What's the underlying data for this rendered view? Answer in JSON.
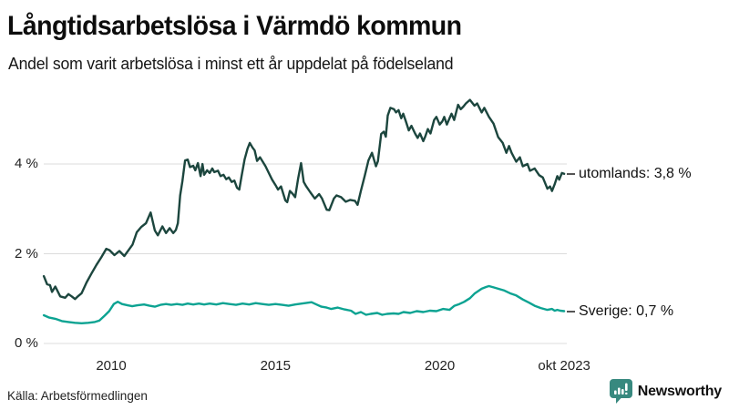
{
  "header": {
    "title": "Långtidsarbetslösa i Värmdö kommun",
    "subtitle": "Andel som varit arbetslösa i minst ett år uppdelat på födelseland"
  },
  "footer": {
    "source": "Källa: Arbetsförmedlingen",
    "brand": "Newsworthy"
  },
  "colors": {
    "utomlands_line": "#1c463e",
    "sverige_line": "#0ca392",
    "grid": "#dcdcdc",
    "text": "#111111",
    "axis_text": "#222222",
    "label_dash": "#555555",
    "brand_teal": "#38897f"
  },
  "chart_data": {
    "type": "line",
    "title": "Långtidsarbetslösa i Värmdö kommun",
    "subtitle": "Andel som varit arbetslösa i minst ett år uppdelat på födelseland",
    "unit": "%",
    "grid": "horizontal gridlines only",
    "legend_position": "inline labels at right end of lines",
    "x_axis": {
      "range": [
        2007.95,
        2023.79
      ],
      "ticks": [
        {
          "label": "2010",
          "year": 2010
        },
        {
          "label": "2015",
          "year": 2015
        },
        {
          "label": "2020",
          "year": 2020
        },
        {
          "label": "okt 2023",
          "year": 2023.79
        }
      ]
    },
    "y_axis": {
      "range": [
        0,
        5.6
      ],
      "ticks": [
        {
          "label": "0 %",
          "value": 0
        },
        {
          "label": "2 %",
          "value": 2
        },
        {
          "label": "4 %",
          "value": 4
        }
      ]
    },
    "series": [
      {
        "name": "utomlands",
        "label": "utomlands: 3,8 %",
        "current_value": "3,8 %",
        "color": "#1c463e",
        "points": [
          [
            2007.95,
            1.5
          ],
          [
            2008.05,
            1.32
          ],
          [
            2008.14,
            1.3
          ],
          [
            2008.2,
            1.15
          ],
          [
            2008.3,
            1.27
          ],
          [
            2008.45,
            1.05
          ],
          [
            2008.6,
            1.02
          ],
          [
            2008.7,
            1.1
          ],
          [
            2008.8,
            1.05
          ],
          [
            2008.9,
            0.99
          ],
          [
            2009.0,
            1.06
          ],
          [
            2009.1,
            1.12
          ],
          [
            2009.25,
            1.36
          ],
          [
            2009.4,
            1.56
          ],
          [
            2009.55,
            1.75
          ],
          [
            2009.7,
            1.92
          ],
          [
            2009.85,
            2.11
          ],
          [
            2009.95,
            2.08
          ],
          [
            2010.1,
            1.97
          ],
          [
            2010.25,
            2.06
          ],
          [
            2010.4,
            1.95
          ],
          [
            2010.55,
            2.1
          ],
          [
            2010.65,
            2.2
          ],
          [
            2010.78,
            2.48
          ],
          [
            2010.92,
            2.6
          ],
          [
            2011.06,
            2.68
          ],
          [
            2011.2,
            2.92
          ],
          [
            2011.33,
            2.52
          ],
          [
            2011.42,
            2.41
          ],
          [
            2011.56,
            2.61
          ],
          [
            2011.67,
            2.46
          ],
          [
            2011.78,
            2.57
          ],
          [
            2011.89,
            2.46
          ],
          [
            2011.97,
            2.53
          ],
          [
            2012.03,
            2.68
          ],
          [
            2012.1,
            3.3
          ],
          [
            2012.17,
            3.62
          ],
          [
            2012.25,
            4.08
          ],
          [
            2012.33,
            4.1
          ],
          [
            2012.4,
            3.93
          ],
          [
            2012.5,
            3.96
          ],
          [
            2012.56,
            3.86
          ],
          [
            2012.64,
            4.02
          ],
          [
            2012.72,
            3.73
          ],
          [
            2012.78,
            4.0
          ],
          [
            2012.83,
            3.76
          ],
          [
            2012.92,
            3.86
          ],
          [
            2013.0,
            3.8
          ],
          [
            2013.08,
            3.9
          ],
          [
            2013.14,
            3.82
          ],
          [
            2013.25,
            3.85
          ],
          [
            2013.33,
            3.73
          ],
          [
            2013.42,
            3.76
          ],
          [
            2013.5,
            3.66
          ],
          [
            2013.58,
            3.7
          ],
          [
            2013.67,
            3.6
          ],
          [
            2013.75,
            3.63
          ],
          [
            2013.83,
            3.47
          ],
          [
            2013.9,
            3.43
          ],
          [
            2013.97,
            3.73
          ],
          [
            2014.06,
            4.1
          ],
          [
            2014.15,
            4.34
          ],
          [
            2014.22,
            4.47
          ],
          [
            2014.3,
            4.37
          ],
          [
            2014.37,
            4.3
          ],
          [
            2014.44,
            4.07
          ],
          [
            2014.53,
            4.15
          ],
          [
            2014.6,
            4.07
          ],
          [
            2014.7,
            3.95
          ],
          [
            2014.8,
            3.8
          ],
          [
            2014.9,
            3.65
          ],
          [
            2015.0,
            3.53
          ],
          [
            2015.08,
            3.43
          ],
          [
            2015.17,
            3.5
          ],
          [
            2015.3,
            3.19
          ],
          [
            2015.36,
            3.15
          ],
          [
            2015.44,
            3.4
          ],
          [
            2015.53,
            3.33
          ],
          [
            2015.6,
            3.26
          ],
          [
            2015.69,
            3.67
          ],
          [
            2015.78,
            4.02
          ],
          [
            2015.86,
            3.6
          ],
          [
            2015.94,
            3.5
          ],
          [
            2016.06,
            3.37
          ],
          [
            2016.2,
            3.23
          ],
          [
            2016.33,
            3.33
          ],
          [
            2016.42,
            3.23
          ],
          [
            2016.56,
            2.98
          ],
          [
            2016.64,
            2.97
          ],
          [
            2016.78,
            3.23
          ],
          [
            2016.86,
            3.3
          ],
          [
            2017.0,
            3.26
          ],
          [
            2017.14,
            3.16
          ],
          [
            2017.28,
            3.2
          ],
          [
            2017.42,
            3.18
          ],
          [
            2017.5,
            3.09
          ],
          [
            2017.6,
            3.4
          ],
          [
            2017.72,
            3.74
          ],
          [
            2017.83,
            4.08
          ],
          [
            2017.94,
            4.25
          ],
          [
            2018.06,
            3.95
          ],
          [
            2018.12,
            4.06
          ],
          [
            2018.22,
            4.67
          ],
          [
            2018.3,
            4.72
          ],
          [
            2018.36,
            4.61
          ],
          [
            2018.42,
            5.08
          ],
          [
            2018.5,
            5.25
          ],
          [
            2018.61,
            5.22
          ],
          [
            2018.67,
            5.15
          ],
          [
            2018.75,
            5.2
          ],
          [
            2018.83,
            5.02
          ],
          [
            2018.89,
            5.12
          ],
          [
            2018.97,
            4.95
          ],
          [
            2019.06,
            4.75
          ],
          [
            2019.14,
            4.85
          ],
          [
            2019.25,
            4.68
          ],
          [
            2019.33,
            4.58
          ],
          [
            2019.4,
            4.68
          ],
          [
            2019.5,
            4.51
          ],
          [
            2019.56,
            4.61
          ],
          [
            2019.64,
            4.78
          ],
          [
            2019.72,
            4.68
          ],
          [
            2019.83,
            4.98
          ],
          [
            2019.9,
            5.05
          ],
          [
            2020.0,
            4.88
          ],
          [
            2020.08,
            4.95
          ],
          [
            2020.14,
            5.05
          ],
          [
            2020.22,
            4.88
          ],
          [
            2020.3,
            5.02
          ],
          [
            2020.36,
            5.12
          ],
          [
            2020.44,
            4.98
          ],
          [
            2020.56,
            5.32
          ],
          [
            2020.64,
            5.22
          ],
          [
            2020.72,
            5.28
          ],
          [
            2020.8,
            5.35
          ],
          [
            2020.92,
            5.43
          ],
          [
            2021.06,
            5.3
          ],
          [
            2021.14,
            5.35
          ],
          [
            2021.28,
            5.15
          ],
          [
            2021.36,
            5.25
          ],
          [
            2021.5,
            5.05
          ],
          [
            2021.64,
            4.9
          ],
          [
            2021.78,
            4.6
          ],
          [
            2021.92,
            4.47
          ],
          [
            2022.03,
            4.25
          ],
          [
            2022.11,
            4.4
          ],
          [
            2022.19,
            4.25
          ],
          [
            2022.33,
            4.05
          ],
          [
            2022.44,
            4.15
          ],
          [
            2022.53,
            3.95
          ],
          [
            2022.67,
            4.0
          ],
          [
            2022.75,
            3.85
          ],
          [
            2022.89,
            3.9
          ],
          [
            2023.03,
            3.75
          ],
          [
            2023.14,
            3.7
          ],
          [
            2023.28,
            3.45
          ],
          [
            2023.36,
            3.5
          ],
          [
            2023.42,
            3.4
          ],
          [
            2023.5,
            3.55
          ],
          [
            2023.58,
            3.73
          ],
          [
            2023.64,
            3.65
          ],
          [
            2023.72,
            3.8
          ],
          [
            2023.79,
            3.78
          ]
        ]
      },
      {
        "name": "Sverige",
        "label": "Sverige: 0,7 %",
        "current_value": "0,7 %",
        "color": "#0ca392",
        "points": [
          [
            2007.95,
            0.63
          ],
          [
            2008.1,
            0.58
          ],
          [
            2008.3,
            0.55
          ],
          [
            2008.5,
            0.5
          ],
          [
            2008.7,
            0.48
          ],
          [
            2008.9,
            0.46
          ],
          [
            2009.1,
            0.45
          ],
          [
            2009.3,
            0.46
          ],
          [
            2009.5,
            0.48
          ],
          [
            2009.64,
            0.51
          ],
          [
            2009.8,
            0.62
          ],
          [
            2009.94,
            0.72
          ],
          [
            2010.08,
            0.88
          ],
          [
            2010.2,
            0.93
          ],
          [
            2010.33,
            0.88
          ],
          [
            2010.5,
            0.85
          ],
          [
            2010.64,
            0.83
          ],
          [
            2010.8,
            0.85
          ],
          [
            2011.0,
            0.87
          ],
          [
            2011.17,
            0.84
          ],
          [
            2011.33,
            0.82
          ],
          [
            2011.5,
            0.86
          ],
          [
            2011.67,
            0.88
          ],
          [
            2011.83,
            0.86
          ],
          [
            2012.0,
            0.88
          ],
          [
            2012.17,
            0.86
          ],
          [
            2012.33,
            0.89
          ],
          [
            2012.5,
            0.87
          ],
          [
            2012.67,
            0.89
          ],
          [
            2012.83,
            0.87
          ],
          [
            2013.0,
            0.89
          ],
          [
            2013.2,
            0.87
          ],
          [
            2013.4,
            0.9
          ],
          [
            2013.6,
            0.88
          ],
          [
            2013.8,
            0.86
          ],
          [
            2014.0,
            0.89
          ],
          [
            2014.2,
            0.87
          ],
          [
            2014.4,
            0.9
          ],
          [
            2014.6,
            0.88
          ],
          [
            2014.8,
            0.86
          ],
          [
            2015.0,
            0.88
          ],
          [
            2015.2,
            0.86
          ],
          [
            2015.4,
            0.84
          ],
          [
            2015.6,
            0.87
          ],
          [
            2015.8,
            0.89
          ],
          [
            2016.0,
            0.91
          ],
          [
            2016.1,
            0.92
          ],
          [
            2016.25,
            0.87
          ],
          [
            2016.4,
            0.82
          ],
          [
            2016.56,
            0.8
          ],
          [
            2016.7,
            0.77
          ],
          [
            2016.9,
            0.8
          ],
          [
            2017.1,
            0.76
          ],
          [
            2017.3,
            0.73
          ],
          [
            2017.44,
            0.66
          ],
          [
            2017.6,
            0.7
          ],
          [
            2017.76,
            0.64
          ],
          [
            2017.9,
            0.66
          ],
          [
            2018.1,
            0.68
          ],
          [
            2018.25,
            0.64
          ],
          [
            2018.4,
            0.66
          ],
          [
            2018.6,
            0.67
          ],
          [
            2018.75,
            0.66
          ],
          [
            2018.9,
            0.7
          ],
          [
            2019.1,
            0.68
          ],
          [
            2019.3,
            0.72
          ],
          [
            2019.5,
            0.7
          ],
          [
            2019.7,
            0.73
          ],
          [
            2019.9,
            0.72
          ],
          [
            2020.1,
            0.77
          ],
          [
            2020.3,
            0.75
          ],
          [
            2020.45,
            0.84
          ],
          [
            2020.6,
            0.88
          ],
          [
            2020.75,
            0.93
          ],
          [
            2020.92,
            1.01
          ],
          [
            2021.06,
            1.11
          ],
          [
            2021.28,
            1.22
          ],
          [
            2021.42,
            1.26
          ],
          [
            2021.5,
            1.28
          ],
          [
            2021.64,
            1.25
          ],
          [
            2021.78,
            1.22
          ],
          [
            2021.97,
            1.18
          ],
          [
            2022.17,
            1.11
          ],
          [
            2022.33,
            1.07
          ],
          [
            2022.53,
            0.98
          ],
          [
            2022.72,
            0.91
          ],
          [
            2022.89,
            0.84
          ],
          [
            2023.08,
            0.79
          ],
          [
            2023.28,
            0.75
          ],
          [
            2023.42,
            0.77
          ],
          [
            2023.5,
            0.73
          ],
          [
            2023.58,
            0.75
          ],
          [
            2023.67,
            0.73
          ],
          [
            2023.79,
            0.72
          ]
        ]
      }
    ]
  }
}
